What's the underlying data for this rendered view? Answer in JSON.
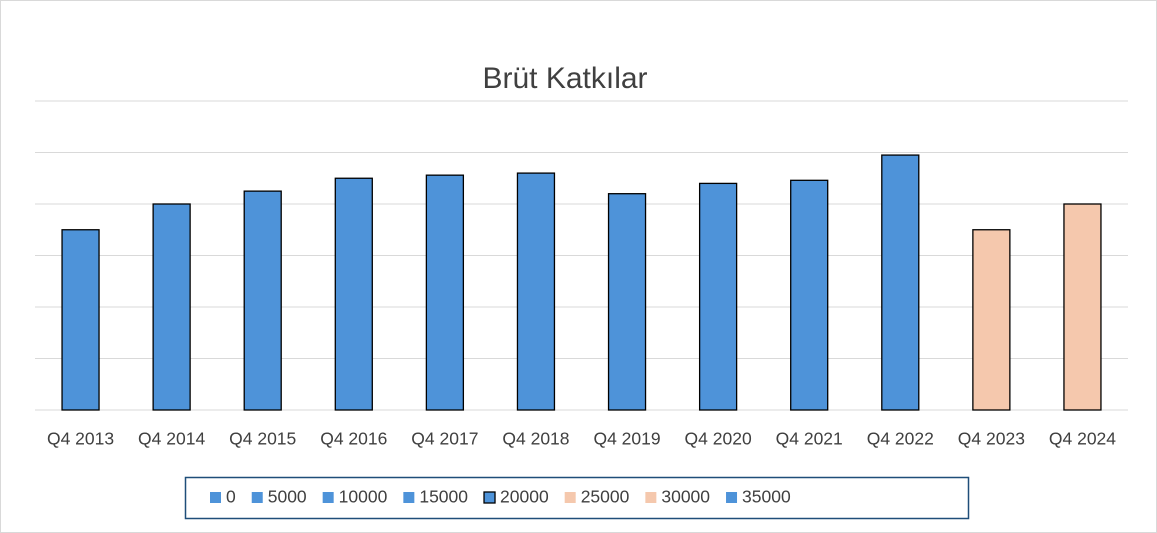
{
  "chart_data": {
    "type": "bar",
    "title": "Brüt Katkılar",
    "categories": [
      "Q4 2013",
      "Q4 2014",
      "Q4 2015",
      "Q4 2016",
      "Q4 2017",
      "Q4 2018",
      "Q4 2019",
      "Q4 2020",
      "Q4 2021",
      "Q4 2022",
      "Q4 2023",
      "Q4 2024"
    ],
    "values": [
      17500,
      20000,
      21250,
      22500,
      22800,
      23000,
      21000,
      22000,
      22300,
      24750,
      17500,
      20000
    ],
    "colors": [
      "#4e93d9",
      "#4e93d9",
      "#4e93d9",
      "#4e93d9",
      "#4e93d9",
      "#4e93d9",
      "#4e93d9",
      "#4e93d9",
      "#4e93d9",
      "#4e93d9",
      "#f5c8ad",
      "#f5c8ad"
    ],
    "ylim": [
      0,
      30000
    ],
    "yticks": [
      0,
      5000,
      10000,
      15000,
      20000,
      25000,
      30000
    ],
    "grid": true,
    "legend": [
      {
        "label": "0",
        "color": "#4e93d9",
        "outline": false
      },
      {
        "label": "5000",
        "color": "#4e93d9",
        "outline": false
      },
      {
        "label": "10000",
        "color": "#4e93d9",
        "outline": false
      },
      {
        "label": "15000",
        "color": "#4e93d9",
        "outline": false
      },
      {
        "label": "20000",
        "color": "#4e93d9",
        "outline": true
      },
      {
        "label": "25000",
        "color": "#f5c8ad",
        "outline": false
      },
      {
        "label": "30000",
        "color": "#f5c8ad",
        "outline": false
      },
      {
        "label": "35000",
        "color": "#4e93d9",
        "outline": false
      }
    ]
  }
}
